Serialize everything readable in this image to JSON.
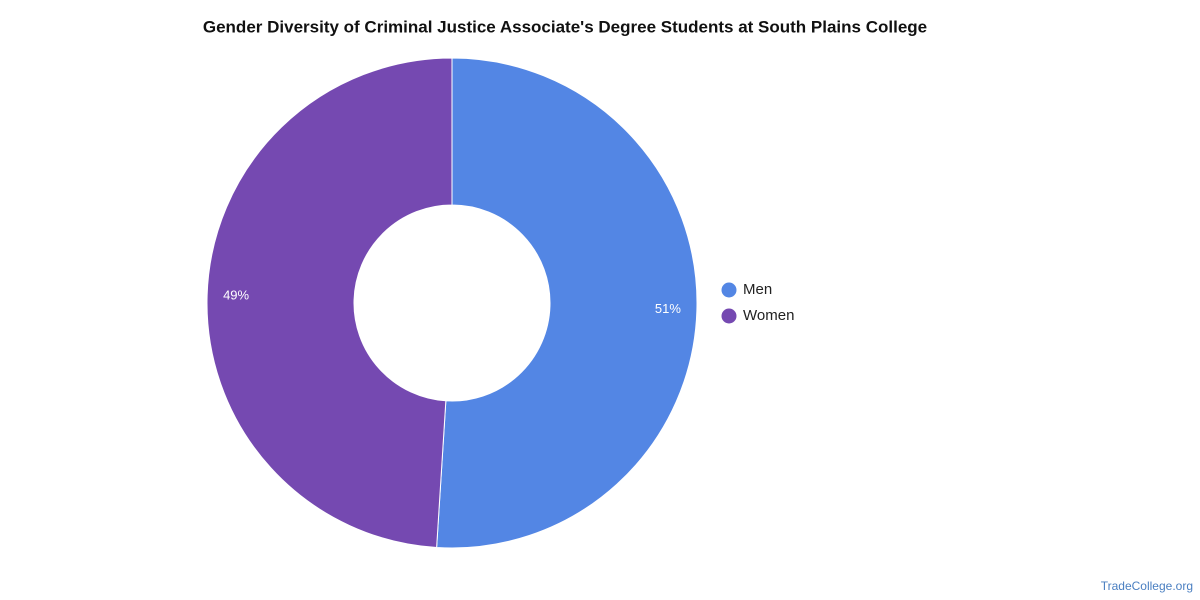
{
  "chart_data": {
    "type": "pie",
    "donut": true,
    "title": "Gender Diversity of Criminal Justice Associate's Degree Students at South Plains College",
    "categories": [
      "Men",
      "Women"
    ],
    "values": [
      51,
      49
    ],
    "value_labels": [
      "51%",
      "49%"
    ],
    "colors": [
      "#5386e4",
      "#7549b1"
    ],
    "legend": "right",
    "source": "TradeCollege.org"
  }
}
